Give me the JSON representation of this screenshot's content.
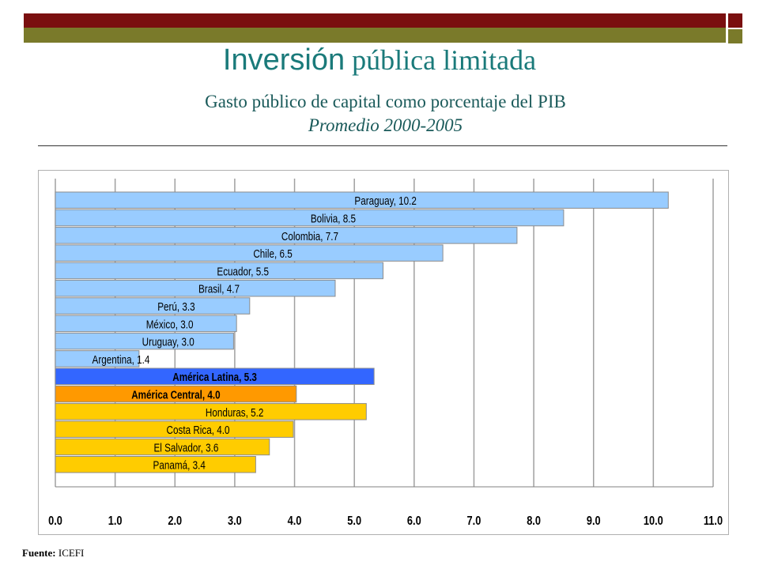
{
  "slide": {
    "title_part1": "Inversión",
    "title_part2": " pública limitada",
    "subtitle": "Gasto público de capital como porcentaje del PIB",
    "period": "Promedio 2000-2005",
    "source_label": "Fuente:",
    "source_value": " ICEFI"
  },
  "colors": {
    "accent_dark_red": "#7a0f0f",
    "accent_olive": "#7a7a2a",
    "title": "#1a7a7a",
    "south_america": "#99ccff",
    "latin_america": "#3366ff",
    "central_america_avg": "#ff9900",
    "central_america": "#ffcc00"
  },
  "chart_data": {
    "type": "bar",
    "orientation": "horizontal",
    "title": "Gasto público de capital como porcentaje del PIB",
    "xlabel": "",
    "ylabel": "",
    "xlim": [
      0,
      11
    ],
    "x_ticks": [
      "0.0",
      "1.0",
      "2.0",
      "3.0",
      "4.0",
      "5.0",
      "6.0",
      "7.0",
      "8.0",
      "9.0",
      "10.0",
      "11.0"
    ],
    "grid": true,
    "bars": [
      {
        "label": "Paraguay, 10.2",
        "value": 10.25,
        "group": "south_america",
        "bold": false
      },
      {
        "label": "Bolivia, 8.5",
        "value": 8.5,
        "group": "south_america",
        "bold": false
      },
      {
        "label": "Colombia, 7.7",
        "value": 7.72,
        "group": "south_america",
        "bold": false
      },
      {
        "label": "Chile, 6.5",
        "value": 6.48,
        "group": "south_america",
        "bold": false
      },
      {
        "label": "Ecuador, 5.5",
        "value": 5.48,
        "group": "south_america",
        "bold": false
      },
      {
        "label": "Brasil, 4.7",
        "value": 4.68,
        "group": "south_america",
        "bold": false
      },
      {
        "label": "Perú, 3.3",
        "value": 3.25,
        "group": "south_america",
        "bold": false
      },
      {
        "label": "México, 3.0",
        "value": 3.03,
        "group": "south_america",
        "bold": false
      },
      {
        "label": "Uruguay, 3.0",
        "value": 2.98,
        "group": "south_america",
        "bold": false
      },
      {
        "label": "Argentina, 1.4",
        "value": 1.4,
        "group": "south_america",
        "bold": false
      },
      {
        "label": "América Latina, 5.3",
        "value": 5.33,
        "group": "latin_america",
        "bold": true
      },
      {
        "label": "América Central, 4.0",
        "value": 4.03,
        "group": "central_america_avg",
        "bold": true
      },
      {
        "label": "Honduras, 5.2",
        "value": 5.2,
        "group": "central_america",
        "bold": false
      },
      {
        "label": "Costa Rica, 4.0",
        "value": 3.98,
        "group": "central_america",
        "bold": false
      },
      {
        "label": "El Salvador, 3.6",
        "value": 3.58,
        "group": "central_america",
        "bold": false
      },
      {
        "label": "Panamá, 3.4",
        "value": 3.35,
        "group": "central_america",
        "bold": false
      }
    ]
  }
}
